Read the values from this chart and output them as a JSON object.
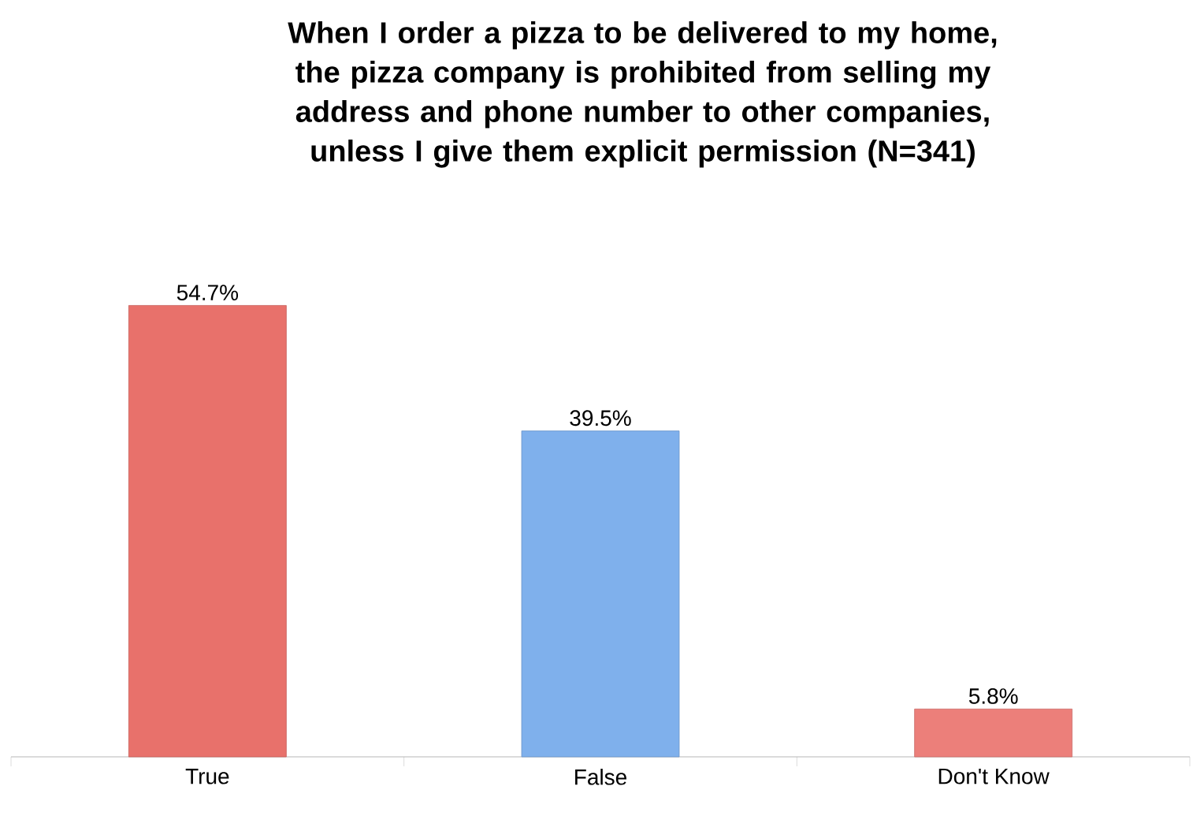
{
  "chart_data": {
    "type": "bar",
    "title": "When I order a pizza to be delivered to my home, the pizza company is prohibited from selling my address and phone number to other companies, unless I give them explicit permission (N=341)",
    "categories": [
      "True",
      "False",
      "Don't Know"
    ],
    "values": [
      54.7,
      39.5,
      5.8
    ],
    "value_labels": [
      "54.7%",
      "39.5%",
      "5.8%"
    ],
    "colors": [
      "#e8716b",
      "#7fb0ec",
      "#ec7f7a"
    ]
  }
}
